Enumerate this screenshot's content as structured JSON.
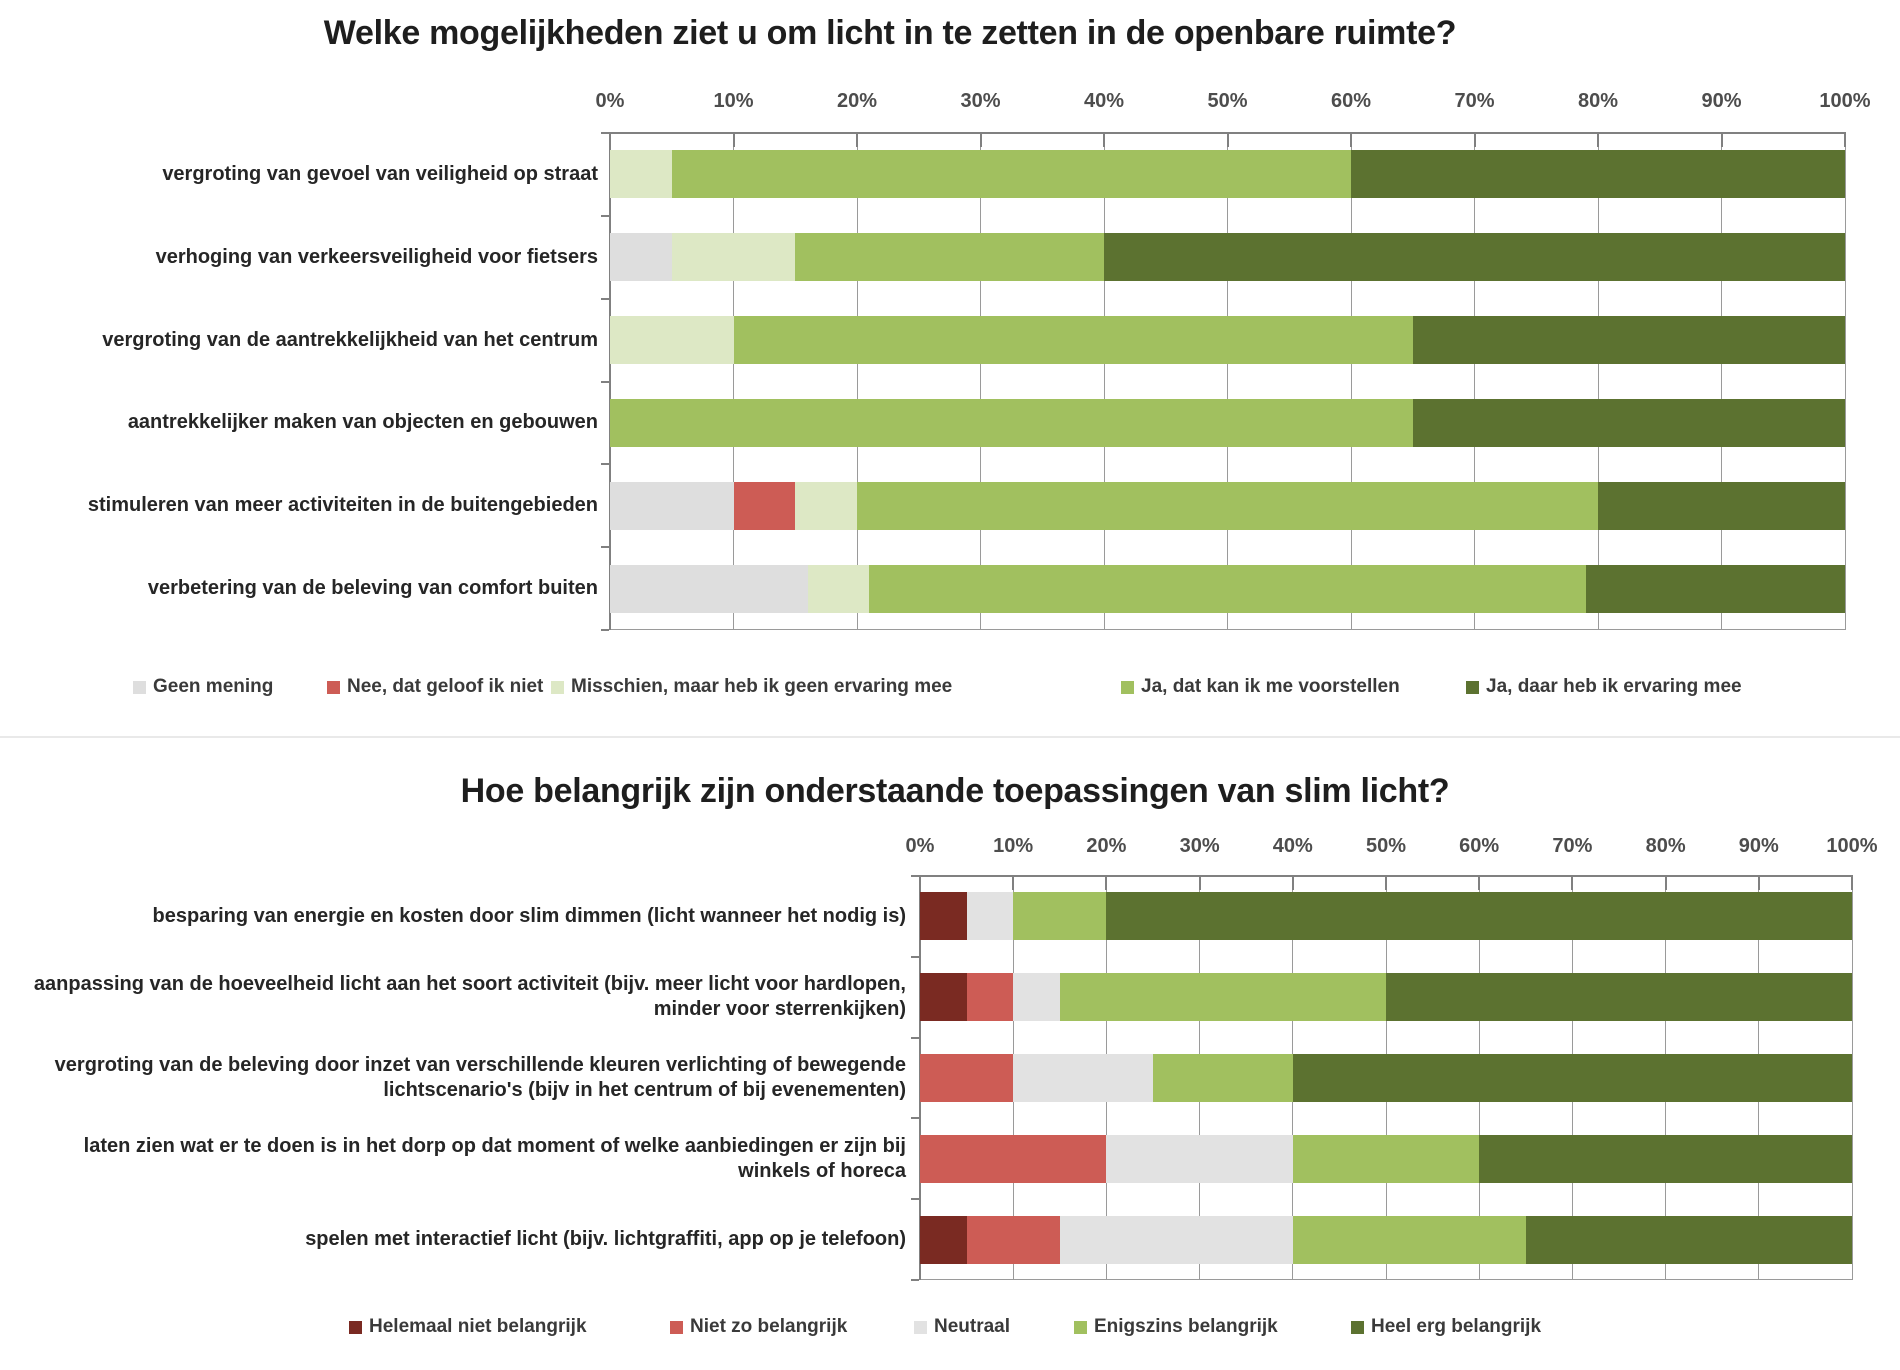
{
  "chart_data": [
    {
      "type": "bar",
      "variant": "horizontal-stacked-100",
      "title": "Welke mogelijkheden ziet u om licht in te zetten in de openbare ruimte?",
      "xlabel": "",
      "ylabel": "",
      "x_axis": {
        "min": 0,
        "max": 100,
        "unit": "percent",
        "grid": true,
        "ticks": [
          "0%",
          "10%",
          "20%",
          "30%",
          "40%",
          "50%",
          "60%",
          "70%",
          "80%",
          "90%",
          "100%"
        ]
      },
      "legend_position": "bottom",
      "series": [
        {
          "name": "Geen mening",
          "color": "#dedede"
        },
        {
          "name": "Nee, dat geloof ik niet",
          "color": "#cd5c55"
        },
        {
          "name": "Misschien, maar heb ik geen ervaring mee",
          "color": "#dde8c5"
        },
        {
          "name": "Ja, dat kan ik me voorstellen",
          "color": "#a1c05f"
        },
        {
          "name": "Ja, daar heb ik ervaring mee",
          "color": "#5c7230"
        }
      ],
      "categories": [
        "vergroting van gevoel van veiligheid op straat",
        "verhoging van verkeersveiligheid voor fietsers",
        "vergroting van de aantrekkelijkheid van het centrum",
        "aantrekkelijker maken van objecten en gebouwen",
        "stimuleren van meer activiteiten in de buitengebieden",
        "verbetering van de beleving van comfort buiten"
      ],
      "values": [
        [
          0,
          0,
          5,
          55,
          40
        ],
        [
          5,
          0,
          10,
          25,
          60
        ],
        [
          0,
          0,
          10,
          55,
          35
        ],
        [
          0,
          0,
          0,
          65,
          35
        ],
        [
          10,
          5,
          5,
          60,
          20
        ],
        [
          16,
          0,
          5,
          58,
          21
        ]
      ]
    },
    {
      "type": "bar",
      "variant": "horizontal-stacked-100",
      "title": "Hoe belangrijk zijn onderstaande toepassingen van slim licht?",
      "xlabel": "",
      "ylabel": "",
      "x_axis": {
        "min": 0,
        "max": 100,
        "unit": "percent",
        "grid": true,
        "ticks": [
          "0%",
          "10%",
          "20%",
          "30%",
          "40%",
          "50%",
          "60%",
          "70%",
          "80%",
          "90%",
          "100%"
        ]
      },
      "legend_position": "bottom",
      "series": [
        {
          "name": "Helemaal niet belangrijk",
          "color": "#7a2a22"
        },
        {
          "name": "Niet zo belangrijk",
          "color": "#cd5c55"
        },
        {
          "name": "Neutraal",
          "color": "#e2e2e2"
        },
        {
          "name": "Enigszins belangrijk",
          "color": "#a1c05f"
        },
        {
          "name": "Heel erg belangrijk",
          "color": "#5c7230"
        }
      ],
      "categories": [
        "besparing van energie en kosten door slim dimmen (licht wanneer het nodig is)",
        "aanpassing van de hoeveelheid licht aan het soort activiteit (bijv. meer licht voor hardlopen, minder voor sterrenkijken)",
        "vergroting van de beleving door inzet van verschillende kleuren verlichting of bewegende lichtscenario's (bijv in het centrum of bij evenementen)",
        "laten zien wat er te doen is in het dorp op dat moment of welke aanbiedingen er zijn bij winkels of horeca",
        "spelen met interactief licht (bijv. lichtgraffiti, app op je telefoon)"
      ],
      "values": [
        [
          5,
          0,
          5,
          10,
          80
        ],
        [
          5,
          5,
          5,
          35,
          50
        ],
        [
          0,
          10,
          15,
          15,
          60
        ],
        [
          0,
          20,
          20,
          20,
          40
        ],
        [
          5,
          10,
          25,
          25,
          35
        ]
      ]
    }
  ],
  "style": {
    "background": "#ffffff",
    "title_color": "#1e1e1e",
    "tick_label_color": "#4d4d4d",
    "row_label_color": "#262626",
    "legend_text_color": "#3a3a3a",
    "gridline_color": "#9a9a9a"
  }
}
